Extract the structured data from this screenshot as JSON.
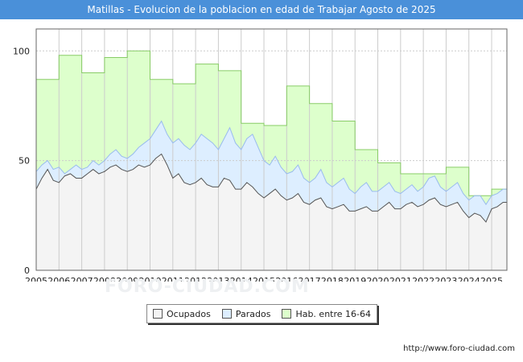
{
  "title": "Matillas - Evolucion de la poblacion en edad de Trabajar Agosto de 2025",
  "source": "http://www.foro-ciudad.com",
  "watermark": "FORO-CIUDAD.COM",
  "colors": {
    "title_bg": "#4a90d9",
    "hab_fill": "#ddffcc",
    "hab_line": "#88cc66",
    "parados_fill": "#ddeeff",
    "parados_line": "#99bbee",
    "ocupados_fill": "#f4f4f4",
    "ocupados_line": "#555555",
    "grid": "#cccccc"
  },
  "chart_data": {
    "type": "area",
    "title": "Matillas - Evolucion de la poblacion en edad de Trabajar Agosto de 2025",
    "xlabel": "",
    "ylabel": "",
    "xlim": [
      2005,
      2025.67
    ],
    "ylim": [
      0,
      110
    ],
    "yticks": [
      0,
      50,
      100
    ],
    "xticks": [
      2005,
      2006,
      2007,
      2008,
      2009,
      2010,
      2011,
      2012,
      2013,
      2014,
      2015,
      2016,
      2017,
      2018,
      2019,
      2020,
      2021,
      2022,
      2023,
      2024,
      2025
    ],
    "legend": [
      "Ocupados",
      "Parados",
      "Hab. entre 16-64"
    ],
    "legend_position": "bottom-center",
    "hab_entre_16_64": {
      "name": "Hab. entre 16-64",
      "step": true,
      "points": [
        [
          2005,
          87
        ],
        [
          2006,
          98
        ],
        [
          2007,
          90
        ],
        [
          2008,
          97
        ],
        [
          2009,
          100
        ],
        [
          2010,
          87
        ],
        [
          2011,
          85
        ],
        [
          2012,
          94
        ],
        [
          2013,
          91
        ],
        [
          2014,
          67
        ],
        [
          2015,
          66
        ],
        [
          2016,
          84
        ],
        [
          2017,
          76
        ],
        [
          2018,
          68
        ],
        [
          2019,
          55
        ],
        [
          2020,
          49
        ],
        [
          2021,
          44
        ],
        [
          2022,
          44
        ],
        [
          2023,
          47
        ],
        [
          2024,
          34
        ],
        [
          2025,
          37
        ]
      ]
    },
    "parados_plus_ocupados": {
      "name": "Parados",
      "points": [
        [
          2005,
          45
        ],
        [
          2005.25,
          48
        ],
        [
          2005.5,
          50
        ],
        [
          2005.75,
          46
        ],
        [
          2006,
          47
        ],
        [
          2006.25,
          44
        ],
        [
          2006.5,
          46
        ],
        [
          2006.75,
          48
        ],
        [
          2007,
          46
        ],
        [
          2007.25,
          47
        ],
        [
          2007.5,
          50
        ],
        [
          2007.75,
          48
        ],
        [
          2008,
          50
        ],
        [
          2008.25,
          53
        ],
        [
          2008.5,
          55
        ],
        [
          2008.75,
          52
        ],
        [
          2009,
          51
        ],
        [
          2009.25,
          53
        ],
        [
          2009.5,
          56
        ],
        [
          2009.75,
          58
        ],
        [
          2010,
          60
        ],
        [
          2010.25,
          64
        ],
        [
          2010.5,
          68
        ],
        [
          2010.75,
          62
        ],
        [
          2011,
          58
        ],
        [
          2011.25,
          60
        ],
        [
          2011.5,
          57
        ],
        [
          2011.75,
          55
        ],
        [
          2012,
          58
        ],
        [
          2012.25,
          62
        ],
        [
          2012.5,
          60
        ],
        [
          2012.75,
          58
        ],
        [
          2013,
          55
        ],
        [
          2013.25,
          60
        ],
        [
          2013.5,
          65
        ],
        [
          2013.75,
          58
        ],
        [
          2014,
          55
        ],
        [
          2014.25,
          60
        ],
        [
          2014.5,
          62
        ],
        [
          2014.75,
          56
        ],
        [
          2015,
          50
        ],
        [
          2015.25,
          48
        ],
        [
          2015.5,
          52
        ],
        [
          2015.75,
          47
        ],
        [
          2016,
          44
        ],
        [
          2016.25,
          45
        ],
        [
          2016.5,
          48
        ],
        [
          2016.75,
          42
        ],
        [
          2017,
          40
        ],
        [
          2017.25,
          42
        ],
        [
          2017.5,
          46
        ],
        [
          2017.75,
          40
        ],
        [
          2018,
          38
        ],
        [
          2018.25,
          40
        ],
        [
          2018.5,
          42
        ],
        [
          2018.75,
          37
        ],
        [
          2019,
          35
        ],
        [
          2019.25,
          38
        ],
        [
          2019.5,
          40
        ],
        [
          2019.75,
          36
        ],
        [
          2020,
          36
        ],
        [
          2020.25,
          38
        ],
        [
          2020.5,
          40
        ],
        [
          2020.75,
          36
        ],
        [
          2021,
          35
        ],
        [
          2021.25,
          37
        ],
        [
          2021.5,
          39
        ],
        [
          2021.75,
          36
        ],
        [
          2022,
          38
        ],
        [
          2022.25,
          42
        ],
        [
          2022.5,
          43
        ],
        [
          2022.75,
          38
        ],
        [
          2023,
          36
        ],
        [
          2023.25,
          38
        ],
        [
          2023.5,
          40
        ],
        [
          2023.75,
          35
        ],
        [
          2024,
          32
        ],
        [
          2024.25,
          34
        ],
        [
          2024.5,
          34
        ],
        [
          2024.75,
          30
        ],
        [
          2025,
          34
        ],
        [
          2025.25,
          35
        ],
        [
          2025.5,
          37
        ],
        [
          2025.67,
          37
        ]
      ]
    },
    "ocupados": {
      "name": "Ocupados",
      "points": [
        [
          2005,
          37
        ],
        [
          2005.25,
          42
        ],
        [
          2005.5,
          46
        ],
        [
          2005.75,
          41
        ],
        [
          2006,
          40
        ],
        [
          2006.25,
          43
        ],
        [
          2006.5,
          44
        ],
        [
          2006.75,
          42
        ],
        [
          2007,
          42
        ],
        [
          2007.25,
          44
        ],
        [
          2007.5,
          46
        ],
        [
          2007.75,
          44
        ],
        [
          2008,
          45
        ],
        [
          2008.25,
          47
        ],
        [
          2008.5,
          48
        ],
        [
          2008.75,
          46
        ],
        [
          2009,
          45
        ],
        [
          2009.25,
          46
        ],
        [
          2009.5,
          48
        ],
        [
          2009.75,
          47
        ],
        [
          2010,
          48
        ],
        [
          2010.25,
          51
        ],
        [
          2010.5,
          53
        ],
        [
          2010.75,
          48
        ],
        [
          2011,
          42
        ],
        [
          2011.25,
          44
        ],
        [
          2011.5,
          40
        ],
        [
          2011.75,
          39
        ],
        [
          2012,
          40
        ],
        [
          2012.25,
          42
        ],
        [
          2012.5,
          39
        ],
        [
          2012.75,
          38
        ],
        [
          2013,
          38
        ],
        [
          2013.25,
          42
        ],
        [
          2013.5,
          41
        ],
        [
          2013.75,
          37
        ],
        [
          2014,
          37
        ],
        [
          2014.25,
          40
        ],
        [
          2014.5,
          38
        ],
        [
          2014.75,
          35
        ],
        [
          2015,
          33
        ],
        [
          2015.25,
          35
        ],
        [
          2015.5,
          37
        ],
        [
          2015.75,
          34
        ],
        [
          2016,
          32
        ],
        [
          2016.25,
          33
        ],
        [
          2016.5,
          35
        ],
        [
          2016.75,
          31
        ],
        [
          2017,
          30
        ],
        [
          2017.25,
          32
        ],
        [
          2017.5,
          33
        ],
        [
          2017.75,
          29
        ],
        [
          2018,
          28
        ],
        [
          2018.25,
          29
        ],
        [
          2018.5,
          30
        ],
        [
          2018.75,
          27
        ],
        [
          2019,
          27
        ],
        [
          2019.25,
          28
        ],
        [
          2019.5,
          29
        ],
        [
          2019.75,
          27
        ],
        [
          2020,
          27
        ],
        [
          2020.25,
          29
        ],
        [
          2020.5,
          31
        ],
        [
          2020.75,
          28
        ],
        [
          2021,
          28
        ],
        [
          2021.25,
          30
        ],
        [
          2021.5,
          31
        ],
        [
          2021.75,
          29
        ],
        [
          2022,
          30
        ],
        [
          2022.25,
          32
        ],
        [
          2022.5,
          33
        ],
        [
          2022.75,
          30
        ],
        [
          2023,
          29
        ],
        [
          2023.25,
          30
        ],
        [
          2023.5,
          31
        ],
        [
          2023.75,
          27
        ],
        [
          2024,
          24
        ],
        [
          2024.25,
          26
        ],
        [
          2024.5,
          25
        ],
        [
          2024.75,
          22
        ],
        [
          2025,
          28
        ],
        [
          2025.25,
          29
        ],
        [
          2025.5,
          31
        ],
        [
          2025.67,
          31
        ]
      ]
    }
  }
}
